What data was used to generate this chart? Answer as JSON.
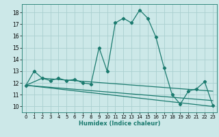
{
  "xlabel": "Humidex (Indice chaleur)",
  "ylabel": "",
  "bg_color": "#cce8e8",
  "grid_color": "#aacfcf",
  "line_color": "#1a7a6e",
  "xlim": [
    -0.5,
    23.5
  ],
  "ylim": [
    9.5,
    18.7
  ],
  "xticks": [
    0,
    1,
    2,
    3,
    4,
    5,
    6,
    7,
    8,
    9,
    10,
    11,
    12,
    13,
    14,
    15,
    16,
    17,
    18,
    19,
    20,
    21,
    22,
    23
  ],
  "yticks": [
    10,
    11,
    12,
    13,
    14,
    15,
    16,
    17,
    18
  ],
  "series": [
    [
      0,
      11.8
    ],
    [
      1,
      13.0
    ],
    [
      2,
      12.4
    ],
    [
      3,
      12.2
    ],
    [
      4,
      12.4
    ],
    [
      5,
      12.2
    ],
    [
      6,
      12.3
    ],
    [
      7,
      12.0
    ],
    [
      8,
      11.9
    ],
    [
      9,
      15.0
    ],
    [
      10,
      13.0
    ],
    [
      11,
      17.1
    ],
    [
      12,
      17.5
    ],
    [
      13,
      17.1
    ],
    [
      14,
      18.2
    ],
    [
      15,
      17.5
    ],
    [
      16,
      15.9
    ],
    [
      17,
      13.3
    ],
    [
      18,
      11.0
    ],
    [
      19,
      10.2
    ],
    [
      20,
      11.3
    ],
    [
      21,
      11.5
    ],
    [
      22,
      12.1
    ],
    [
      23,
      10.1
    ]
  ],
  "series2": [
    [
      0,
      11.8
    ],
    [
      23,
      10.0
    ]
  ],
  "series3": [
    [
      0,
      11.8
    ],
    [
      23,
      10.5
    ]
  ],
  "series4": [
    [
      0,
      11.8
    ],
    [
      2,
      12.4
    ],
    [
      23,
      11.3
    ]
  ]
}
